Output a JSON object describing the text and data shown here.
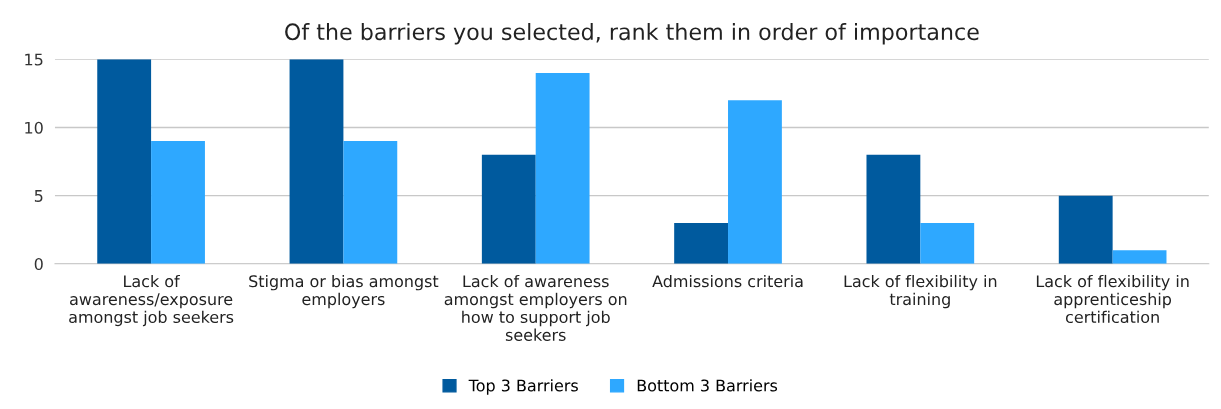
{
  "chart_data": {
    "type": "bar",
    "title": "Of the barriers you selected, rank them in order of importance",
    "categories": [
      "Lack of\nawareness/exposure\namongst job seekers",
      "Stigma or bias amongst\nemployers",
      "Lack of awareness\namongst employers on\nhow to support job\nseekers",
      "Admissions criteria",
      "Lack of flexibility in\ntraining",
      "Lack of flexibility in\napprenticeship\ncertification"
    ],
    "series": [
      {
        "name": "Top 3 Barriers",
        "color": "#005a9e",
        "values": [
          15,
          15,
          8,
          3,
          8,
          5
        ]
      },
      {
        "name": "Bottom 3 Barriers",
        "color": "#2ea8ff",
        "values": [
          9,
          9,
          14,
          12,
          3,
          1
        ]
      }
    ],
    "ylim": [
      0,
      15
    ],
    "yticks": [
      0,
      5,
      10,
      15
    ],
    "grid": "y",
    "legend": "bottom"
  }
}
